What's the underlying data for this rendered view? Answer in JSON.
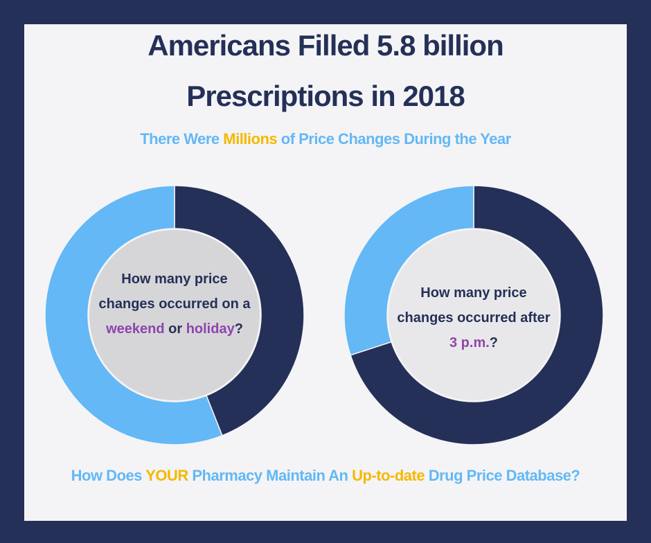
{
  "header": {
    "title": [
      "Americans Filled 5.8 billion",
      "Prescriptions in 2018"
    ],
    "subtitle": [
      "There Were ",
      "Millions",
      " of Price Changes During the Year"
    ]
  },
  "chart_data": [
    {
      "type": "pie",
      "donut": true,
      "values": [
        44,
        56
      ],
      "colors": [
        "#243058",
        "#63b8f5"
      ],
      "center_text": [
        "How many price changes occurred on a ",
        "weekend",
        " or ",
        "holiday",
        "?"
      ]
    },
    {
      "type": "pie",
      "donut": true,
      "values": [
        70,
        30
      ],
      "colors": [
        "#243058",
        "#63b8f5"
      ],
      "center_text": [
        "How many price changes occurred after ",
        "3 p.m.",
        "?"
      ]
    }
  ],
  "footer": [
    "How Does ",
    "YOUR",
    " Pharmacy Maintain An ",
    "Up-to-date",
    " Drug Price Database?"
  ]
}
